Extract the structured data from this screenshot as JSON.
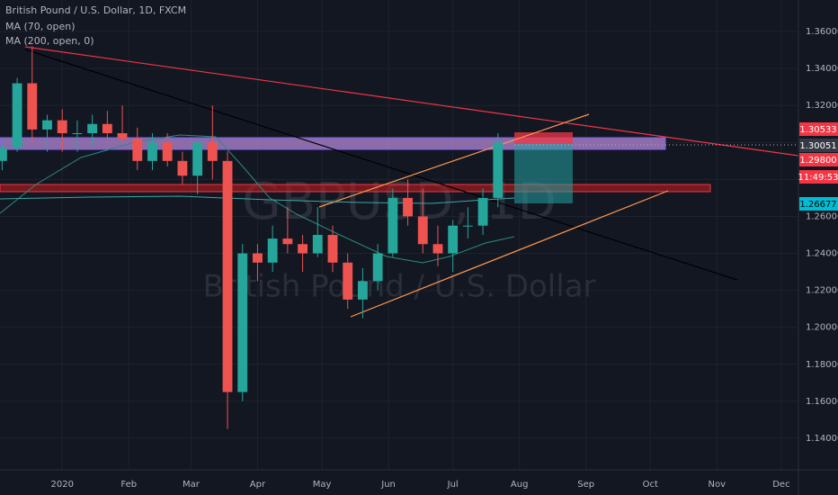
{
  "chart_data": {
    "type": "candlestick",
    "title": "British Pound / U.S. Dollar, 1D, FXCM",
    "indicators": [
      "MA (70, open)",
      "MA (200, open, 0)"
    ],
    "watermark": [
      "GBPUSD, 1D",
      "British Pound / U.S. Dollar"
    ],
    "price_tags": [
      "1.30533",
      "1.30051",
      "1.29800",
      "11:49:53",
      "1.26677"
    ],
    "up_color": "#26a69a",
    "down_color": "#ef5350",
    "xlim": [
      -29,
      343
    ],
    "xticks": [
      {
        "value": 0,
        "label": "2020"
      },
      {
        "value": 31,
        "label": "Feb"
      },
      {
        "value": 60,
        "label": "Mar"
      },
      {
        "value": 91,
        "label": "Apr"
      },
      {
        "value": 121,
        "label": "May"
      },
      {
        "value": 152,
        "label": "Jun"
      },
      {
        "value": 182,
        "label": "Jul"
      },
      {
        "value": 213,
        "label": "Aug"
      },
      {
        "value": 244,
        "label": "Sep"
      },
      {
        "value": 274,
        "label": "Oct"
      },
      {
        "value": 305,
        "label": "Nov"
      },
      {
        "value": 335,
        "label": "Dec"
      }
    ],
    "ylim": [
      1.12293,
      1.37706
    ],
    "yticks": [
      {
        "value": 1.14,
        "label": "1.14000"
      },
      {
        "value": 1.16,
        "label": "1.16000"
      },
      {
        "value": 1.18,
        "label": "1.18000"
      },
      {
        "value": 1.2,
        "label": "1.20000"
      },
      {
        "value": 1.22,
        "label": "1.22000"
      },
      {
        "value": 1.24,
        "label": "1.24000"
      },
      {
        "value": 1.26,
        "label": "1.26000"
      },
      {
        "value": 1.28,
        "label": "1.28000"
      },
      {
        "value": 1.3,
        "label": "1.30000"
      },
      {
        "value": 1.32,
        "label": "1.32000"
      },
      {
        "value": 1.34,
        "label": "1.34000"
      },
      {
        "value": 1.36,
        "label": "1.36000"
      }
    ],
    "grid": true,
    "x": [
      -28,
      -21,
      -14,
      -7,
      0,
      7,
      14,
      21,
      28,
      35,
      42,
      49,
      56,
      63,
      70,
      77,
      84,
      91,
      98,
      105,
      112,
      119,
      126,
      133,
      140,
      147,
      154,
      161,
      168,
      175,
      182,
      189,
      196,
      203
    ],
    "open": [
      1.29,
      1.297,
      1.332,
      1.307,
      1.312,
      1.305,
      1.305,
      1.31,
      1.305,
      1.302,
      1.29,
      1.3,
      1.29,
      1.282,
      1.3,
      1.29,
      1.165,
      1.24,
      1.235,
      1.248,
      1.245,
      1.24,
      1.25,
      1.235,
      1.215,
      1.225,
      1.24,
      1.27,
      1.26,
      1.245,
      1.24,
      1.255,
      1.255,
      1.27
    ],
    "high": [
      1.3,
      1.335,
      1.352,
      1.315,
      1.318,
      1.312,
      1.315,
      1.317,
      1.32,
      1.308,
      1.305,
      1.305,
      1.295,
      1.302,
      1.32,
      1.295,
      1.245,
      1.245,
      1.255,
      1.265,
      1.25,
      1.265,
      1.255,
      1.24,
      1.232,
      1.245,
      1.275,
      1.28,
      1.275,
      1.255,
      1.258,
      1.265,
      1.275,
      1.305
    ],
    "low": [
      1.285,
      1.295,
      1.3,
      1.295,
      1.295,
      1.295,
      1.297,
      1.3,
      1.3,
      1.285,
      1.285,
      1.287,
      1.277,
      1.272,
      1.28,
      1.145,
      1.16,
      1.225,
      1.23,
      1.24,
      1.23,
      1.238,
      1.23,
      1.21,
      1.205,
      1.22,
      1.238,
      1.255,
      1.24,
      1.233,
      1.23,
      1.248,
      1.25,
      1.265
    ],
    "close": [
      1.297,
      1.332,
      1.307,
      1.312,
      1.305,
      1.305,
      1.31,
      1.305,
      1.302,
      1.29,
      1.3,
      1.29,
      1.282,
      1.3,
      1.29,
      1.165,
      1.24,
      1.235,
      1.248,
      1.245,
      1.24,
      1.25,
      1.235,
      1.215,
      1.225,
      1.24,
      1.27,
      1.26,
      1.245,
      1.24,
      1.255,
      1.255,
      1.27,
      1.3
    ]
  }
}
